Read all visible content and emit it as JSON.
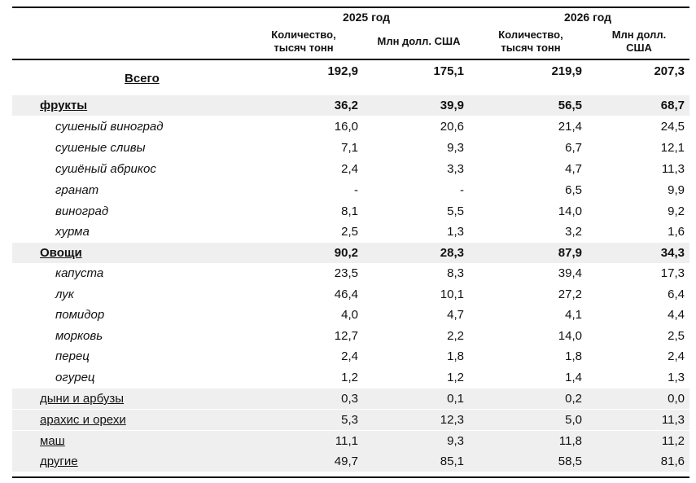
{
  "header": {
    "year_2025": "2025 год",
    "year_2026": "2026 год",
    "col_qty": "Количество, тысяч тонн",
    "col_qty_line1": "Количество,",
    "col_qty_line2": "тысяч тонн",
    "col_usd_2025": "Млн долл. США",
    "col_usd_2026_line1": "Млн долл.",
    "col_usd_2026_line2": "США"
  },
  "total": {
    "label": "Всего",
    "values": [
      "192,9",
      "175,1",
      "219,9",
      "207,3"
    ]
  },
  "rows": [
    {
      "label": "фрукты",
      "kind": "category",
      "values": [
        "36,2",
        "39,9",
        "56,5",
        "68,7"
      ]
    },
    {
      "label": "сушеный виноград",
      "kind": "sub",
      "values": [
        "16,0",
        "20,6",
        "21,4",
        "24,5"
      ]
    },
    {
      "label": "сушеные сливы",
      "kind": "sub",
      "values": [
        "7,1",
        "9,3",
        "6,7",
        "12,1"
      ]
    },
    {
      "label": "сушёный абрикос",
      "kind": "sub",
      "values": [
        "2,4",
        "3,3",
        "4,7",
        "11,3"
      ]
    },
    {
      "label": "гранат",
      "kind": "sub",
      "values": [
        "-",
        "-",
        "6,5",
        "9,9"
      ]
    },
    {
      "label": "виноград",
      "kind": "sub",
      "values": [
        "8,1",
        "5,5",
        "14,0",
        "9,2"
      ]
    },
    {
      "label": "хурма",
      "kind": "sub",
      "values": [
        "2,5",
        "1,3",
        "3,2",
        "1,6"
      ]
    },
    {
      "label": "Овощи",
      "kind": "category",
      "values": [
        "90,2",
        "28,3",
        "87,9",
        "34,3"
      ]
    },
    {
      "label": "капуста",
      "kind": "sub",
      "values": [
        "23,5",
        "8,3",
        "39,4",
        "17,3"
      ]
    },
    {
      "label": "лук",
      "kind": "sub",
      "values": [
        "46,4",
        "10,1",
        "27,2",
        "6,4"
      ]
    },
    {
      "label": "помидор",
      "kind": "sub",
      "values": [
        "4,0",
        "4,7",
        "4,1",
        "4,4"
      ]
    },
    {
      "label": "морковь",
      "kind": "sub",
      "values": [
        "12,7",
        "2,2",
        "14,0",
        "2,5"
      ]
    },
    {
      "label": "перец",
      "kind": "sub",
      "values": [
        "2,4",
        "1,8",
        "1,8",
        "2,4"
      ]
    },
    {
      "label": "огурец",
      "kind": "sub",
      "values": [
        "1,2",
        "1,2",
        "1,4",
        "1,3"
      ]
    },
    {
      "label": "дыни и арбузы",
      "kind": "plain",
      "values": [
        "0,3",
        "0,1",
        "0,2",
        "0,0"
      ]
    },
    {
      "label": "арахис и орехи",
      "kind": "plain",
      "values": [
        "5,3",
        "12,3",
        "5,0",
        "11,3"
      ]
    },
    {
      "label": "маш",
      "kind": "plain",
      "values": [
        "11,1",
        "9,3",
        "11,8",
        "11,2"
      ]
    },
    {
      "label": "другие",
      "kind": "plain",
      "values": [
        "49,7",
        "85,1",
        "58,5",
        "81,6"
      ]
    }
  ]
}
